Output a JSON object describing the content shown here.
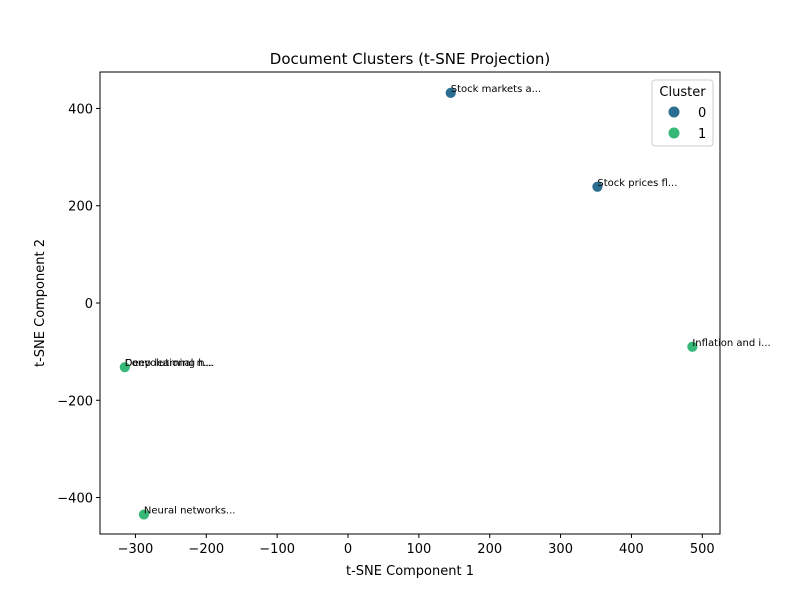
{
  "chart_data": {
    "type": "scatter",
    "title": "Document Clusters (t-SNE Projection)",
    "xlabel": "t-SNE Component 1",
    "ylabel": "t-SNE Component 2",
    "xlim": [
      -350,
      525
    ],
    "ylim": [
      -475,
      475
    ],
    "xticks": [
      -300,
      -200,
      -100,
      0,
      100,
      200,
      300,
      400,
      500
    ],
    "yticks": [
      -400,
      -200,
      0,
      200,
      400
    ],
    "grid": false,
    "legend": {
      "title": "Cluster",
      "placement": "top-right",
      "entries": [
        {
          "name": "0",
          "color": "#2c6e91"
        },
        {
          "name": "1",
          "color": "#36b877"
        }
      ]
    },
    "points": [
      {
        "x": 145,
        "y": 432,
        "cluster": 0,
        "label": "Stock markets a..."
      },
      {
        "x": 352,
        "y": 239,
        "cluster": 0,
        "label": "Stock prices fl..."
      },
      {
        "x": 486,
        "y": -90,
        "cluster": 1,
        "label": "Inflation and i..."
      },
      {
        "x": -315,
        "y": -132,
        "cluster": 1,
        "label": "Convolutional n..."
      },
      {
        "x": -315,
        "y": -132,
        "cluster": 1,
        "label": "Deep learning h..."
      },
      {
        "x": -288,
        "y": -435,
        "cluster": 1,
        "label": "Neural networks..."
      }
    ]
  }
}
